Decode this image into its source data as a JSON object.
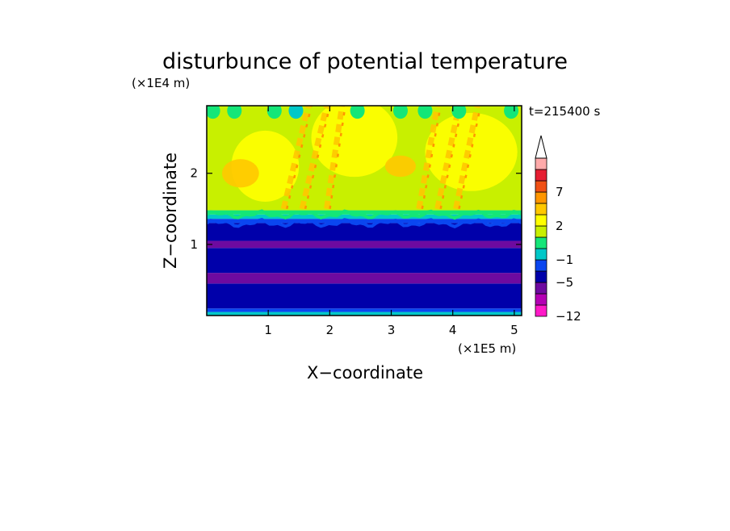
{
  "chart_data": {
    "type": "heatmap",
    "title": "disturbunce of potential temperature",
    "xlabel": "X−coordinate",
    "ylabel": "Z−coordinate",
    "x_unit": "(×1E5 m)",
    "y_unit": "(×1E4 m)",
    "time_label": "t=215400 s",
    "xlim": [
      0,
      5.12
    ],
    "ylim": [
      0,
      2.95
    ],
    "x_ticks": [
      1,
      2,
      3,
      4,
      5
    ],
    "x_tick_labels": [
      "1",
      "2",
      "3",
      "4",
      "5"
    ],
    "y_ticks": [
      1,
      2
    ],
    "y_tick_labels": [
      "1",
      "2"
    ],
    "colorbar": {
      "levels": [
        -12,
        -10,
        -7,
        -5,
        -3,
        -1,
        0,
        1,
        2,
        3,
        5,
        7,
        9,
        12
      ],
      "tick_labels": [
        {
          "value": -12,
          "label": "−12"
        },
        {
          "value": -5,
          "label": "−5"
        },
        {
          "value": -1,
          "label": "−1"
        },
        {
          "value": 2,
          "label": "2"
        },
        {
          "value": 7,
          "label": "7"
        }
      ],
      "colors": [
        "#ff19c8",
        "#b400b4",
        "#6e0aa0",
        "#0000aa",
        "#0a46f0",
        "#00c8c8",
        "#14e678",
        "#c8f000",
        "#ffff00",
        "#ffc800",
        "#ff9600",
        "#f05014",
        "#e61e32",
        "#ffaaaa"
      ],
      "extend_max": true
    },
    "layers": [
      {
        "z": [
          0.0,
          0.05
        ],
        "level": -1
      },
      {
        "z": [
          0.05,
          0.1
        ],
        "level": -3
      },
      {
        "z": [
          0.1,
          0.45
        ],
        "level": -5
      },
      {
        "z": [
          0.45,
          0.6
        ],
        "level": -7
      },
      {
        "z": [
          0.6,
          0.95
        ],
        "level": -5
      },
      {
        "z": [
          0.95,
          1.05
        ],
        "level": -7
      },
      {
        "z": [
          1.05,
          1.3
        ],
        "level": -5
      },
      {
        "z": [
          1.3,
          1.36
        ],
        "level": -3
      },
      {
        "z": [
          1.36,
          1.42
        ],
        "level": -1
      },
      {
        "z": [
          1.42,
          1.48
        ],
        "level": 0
      },
      {
        "z": [
          1.48,
          2.95
        ],
        "level": 1
      }
    ],
    "warm_regions": [
      {
        "x": 0.95,
        "z": 2.1,
        "rx": 0.55,
        "rz": 0.5,
        "level": 2
      },
      {
        "x": 2.4,
        "z": 2.5,
        "rx": 0.7,
        "rz": 0.55,
        "level": 2
      },
      {
        "x": 4.3,
        "z": 2.3,
        "rx": 0.75,
        "rz": 0.55,
        "level": 2
      },
      {
        "x": 3.15,
        "z": 2.1,
        "rx": 0.25,
        "rz": 0.15,
        "level": 3
      },
      {
        "x": 0.55,
        "z": 2.0,
        "rx": 0.3,
        "rz": 0.2,
        "level": 3
      }
    ],
    "wave_rays": [
      {
        "x0": 1.25,
        "z0": 1.5,
        "x1": 1.65,
        "z1": 2.95
      },
      {
        "x0": 1.55,
        "z0": 1.5,
        "x1": 1.95,
        "z1": 2.95
      },
      {
        "x0": 1.95,
        "z0": 1.5,
        "x1": 2.2,
        "z1": 2.95
      },
      {
        "x0": 3.45,
        "z0": 1.5,
        "x1": 3.75,
        "z1": 2.95
      },
      {
        "x0": 3.75,
        "z0": 1.5,
        "x1": 4.1,
        "z1": 2.95
      },
      {
        "x0": 4.05,
        "z0": 1.5,
        "x1": 4.4,
        "z1": 2.95
      }
    ],
    "top_cells": [
      {
        "x": 0.1,
        "level": 0
      },
      {
        "x": 0.45,
        "level": 0
      },
      {
        "x": 1.1,
        "level": 0
      },
      {
        "x": 1.45,
        "level": -1
      },
      {
        "x": 2.45,
        "level": 0
      },
      {
        "x": 3.15,
        "level": 0
      },
      {
        "x": 3.55,
        "level": 0
      },
      {
        "x": 4.1,
        "level": 0
      },
      {
        "x": 4.95,
        "level": 0
      }
    ]
  }
}
